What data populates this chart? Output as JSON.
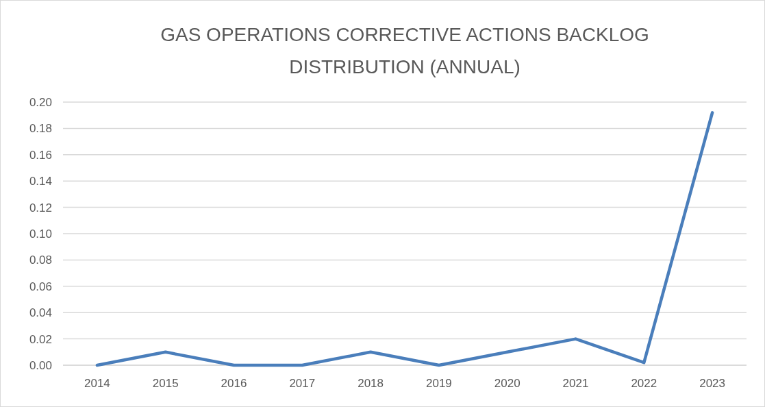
{
  "chart_data": {
    "type": "line",
    "title": "GAS OPERATIONS CORRECTIVE ACTIONS BACKLOG DISTRIBUTION (ANNUAL)",
    "categories": [
      "2014",
      "2015",
      "2016",
      "2017",
      "2018",
      "2019",
      "2020",
      "2021",
      "2022",
      "2023"
    ],
    "series": [
      {
        "color": "#4a7ebb",
        "values": [
          0,
          0.01,
          0,
          0,
          0.01,
          0,
          0.01,
          0.02,
          0.002,
          0.192
        ]
      }
    ],
    "ylim": [
      0,
      0.2
    ],
    "yticks": [
      {
        "value": 0,
        "label": "0.00"
      },
      {
        "value": 0.02,
        "label": "0.02"
      },
      {
        "value": 0.04,
        "label": "0.04"
      },
      {
        "value": 0.06,
        "label": "0.06"
      },
      {
        "value": 0.08,
        "label": "0.08"
      },
      {
        "value": 0.1,
        "label": "0.10"
      },
      {
        "value": 0.12,
        "label": "0.12"
      },
      {
        "value": 0.14,
        "label": "0.14"
      },
      {
        "value": 0.16,
        "label": "0.16"
      },
      {
        "value": 0.18,
        "label": "0.18"
      },
      {
        "value": 0.2,
        "label": "0.20"
      }
    ],
    "grid": "y",
    "marker": "none",
    "line_style": "solid"
  }
}
